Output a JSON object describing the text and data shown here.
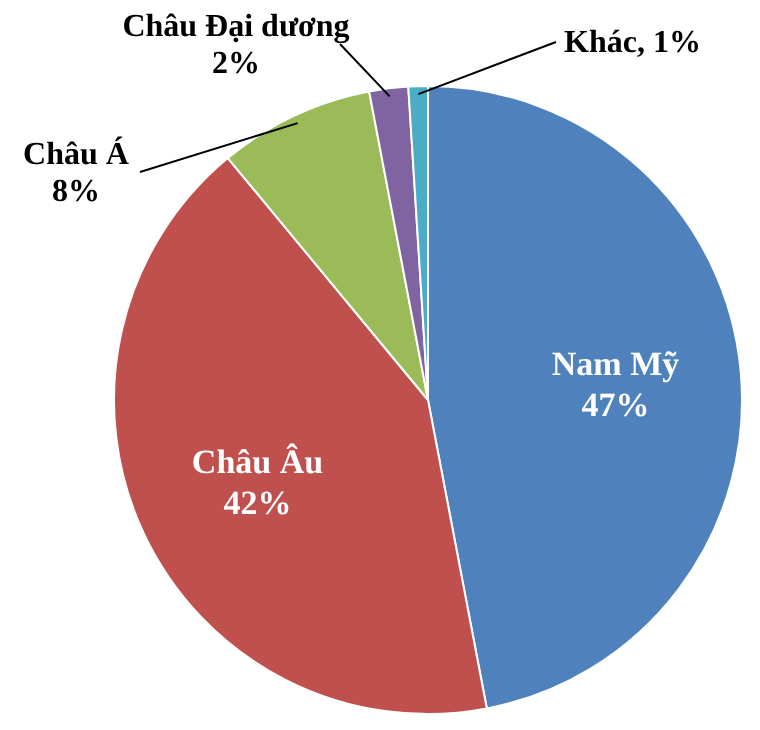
{
  "chart_data": {
    "type": "pie",
    "categories": [
      "Nam Mỹ",
      "Châu Âu",
      "Châu Á",
      "Châu Đại dương",
      "Khác"
    ],
    "values": [
      47,
      42,
      8,
      2,
      1
    ],
    "value_labels": [
      "47%",
      "42%",
      "8%",
      "2%",
      "1%"
    ],
    "colors": [
      "#4f81bd",
      "#c0504d",
      "#9bbb59",
      "#8064a2",
      "#4bacc6"
    ],
    "data_labels": true
  }
}
